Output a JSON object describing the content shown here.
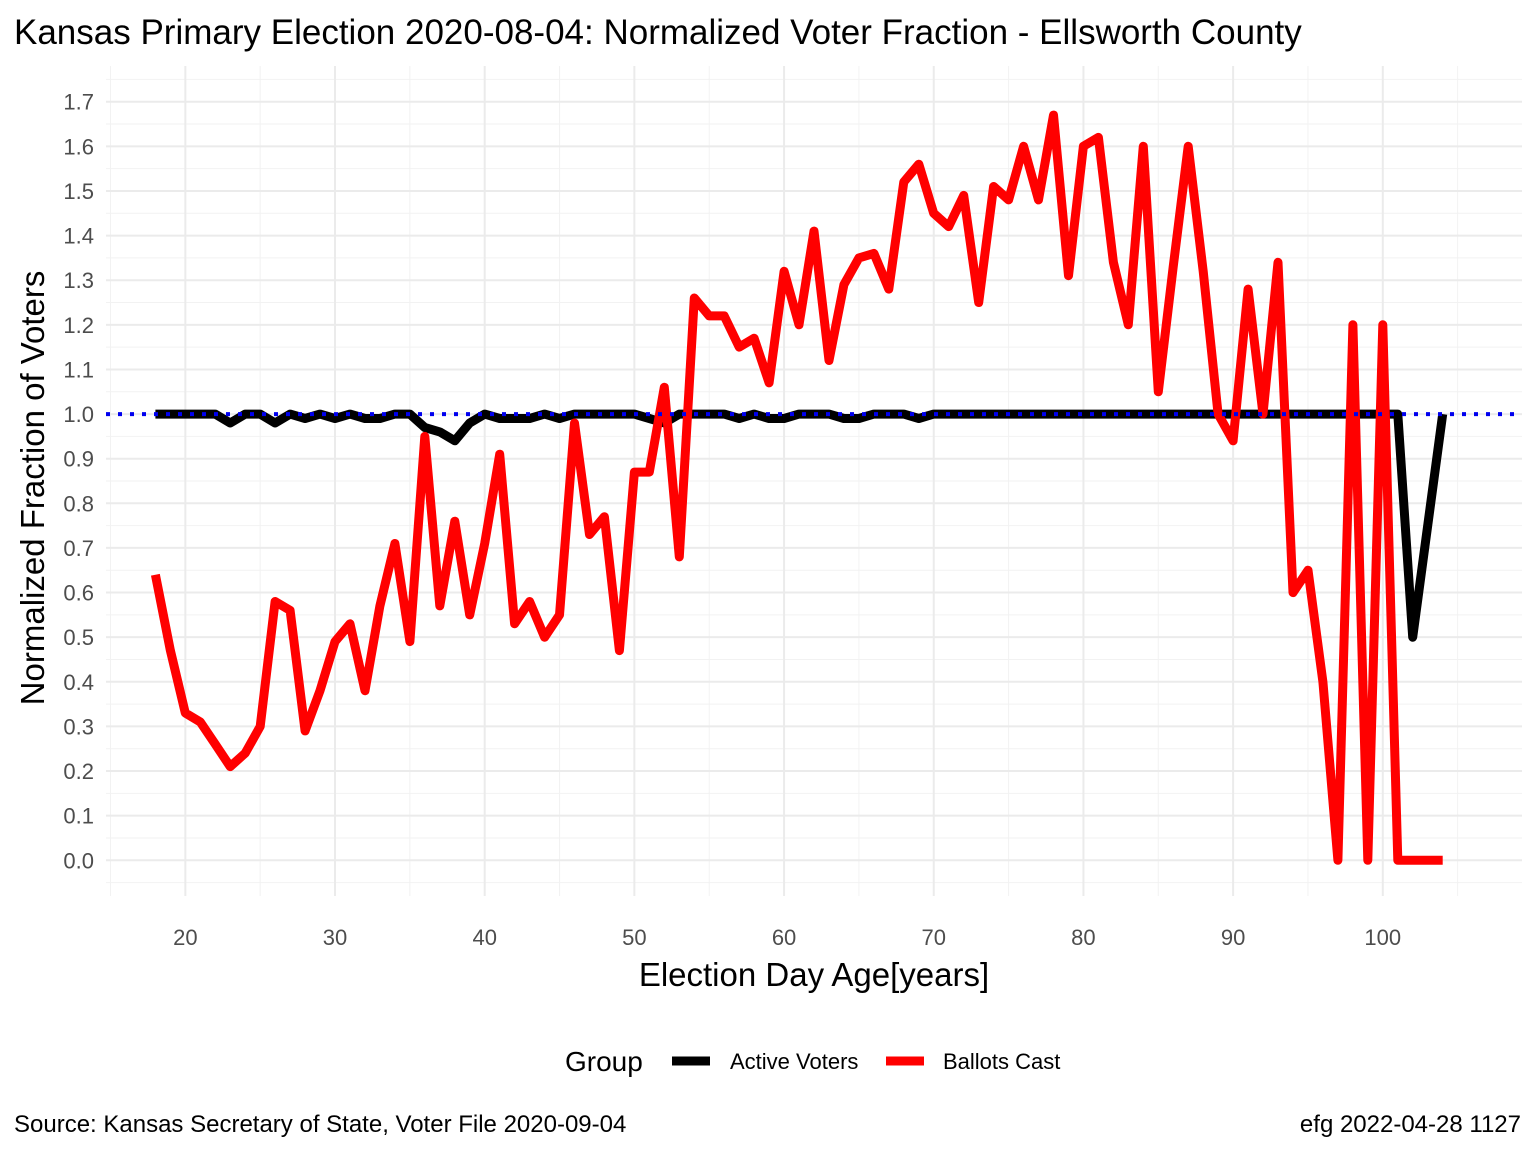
{
  "chart_data": {
    "type": "line",
    "title": "Kansas Primary Election 2020-08-04:  Normalized Voter Fraction - Ellsworth County",
    "xlabel": "Election Day Age[years]",
    "ylabel": "Normalized Fraction of Voters",
    "xlim": [
      14.7,
      109.3
    ],
    "ylim": [
      -0.08,
      1.78
    ],
    "x_ticks": [
      20,
      30,
      40,
      50,
      60,
      70,
      80,
      90,
      100
    ],
    "y_ticks": [
      0.0,
      0.1,
      0.2,
      0.3,
      0.4,
      0.5,
      0.6,
      0.7,
      0.8,
      0.9,
      1.0,
      1.1,
      1.2,
      1.3,
      1.4,
      1.5,
      1.6,
      1.7
    ],
    "y_tick_labels": [
      "0.0",
      "0.1",
      "0.2",
      "0.3",
      "0.4",
      "0.5",
      "0.6",
      "0.7",
      "0.8",
      "0.9",
      "1.0",
      "1.1",
      "1.2",
      "1.3",
      "1.4",
      "1.5",
      "1.6",
      "1.7"
    ],
    "grid": true,
    "reference_line": {
      "y": 1.0,
      "color": "#0000ee",
      "style": "dotted"
    },
    "legend": {
      "title": "Group",
      "position": "bottom"
    },
    "series": [
      {
        "name": "Active Voters",
        "color": "#000000",
        "x": [
          18,
          19,
          20,
          21,
          22,
          23,
          24,
          25,
          26,
          27,
          28,
          29,
          30,
          31,
          32,
          33,
          34,
          35,
          36,
          37,
          38,
          39,
          40,
          41,
          42,
          43,
          44,
          45,
          46,
          47,
          48,
          49,
          50,
          51,
          52,
          53,
          54,
          55,
          56,
          57,
          58,
          59,
          60,
          61,
          62,
          63,
          64,
          65,
          66,
          67,
          68,
          69,
          70,
          71,
          72,
          73,
          74,
          75,
          76,
          77,
          78,
          79,
          80,
          81,
          82,
          83,
          84,
          85,
          86,
          87,
          88,
          89,
          90,
          91,
          92,
          93,
          94,
          95,
          96,
          97,
          98,
          99,
          100,
          101,
          102,
          103,
          104
        ],
        "values": [
          1.0,
          1.0,
          1.0,
          1.0,
          1.0,
          0.98,
          1.0,
          1.0,
          0.98,
          1.0,
          0.99,
          1.0,
          0.99,
          1.0,
          0.99,
          0.99,
          1.0,
          1.0,
          0.97,
          0.96,
          0.94,
          0.98,
          1.0,
          0.99,
          0.99,
          0.99,
          1.0,
          0.99,
          1.0,
          1.0,
          1.0,
          1.0,
          1.0,
          0.99,
          0.98,
          1.0,
          1.0,
          1.0,
          1.0,
          0.99,
          1.0,
          0.99,
          0.99,
          1.0,
          1.0,
          1.0,
          0.99,
          0.99,
          1.0,
          1.0,
          1.0,
          0.99,
          1.0,
          1.0,
          1.0,
          1.0,
          1.0,
          1.0,
          1.0,
          1.0,
          1.0,
          1.0,
          1.0,
          1.0,
          1.0,
          1.0,
          1.0,
          1.0,
          1.0,
          1.0,
          1.0,
          1.0,
          1.0,
          1.0,
          1.0,
          1.0,
          1.0,
          1.0,
          1.0,
          1.0,
          1.0,
          1.0,
          1.0,
          1.0,
          0.5,
          0.75,
          1.0
        ]
      },
      {
        "name": "Ballots Cast",
        "color": "#ff0000",
        "x": [
          18,
          19,
          20,
          21,
          22,
          23,
          24,
          25,
          26,
          27,
          28,
          29,
          30,
          31,
          32,
          33,
          34,
          35,
          36,
          37,
          38,
          39,
          40,
          41,
          42,
          43,
          44,
          45,
          46,
          47,
          48,
          49,
          50,
          51,
          52,
          53,
          54,
          55,
          56,
          57,
          58,
          59,
          60,
          61,
          62,
          63,
          64,
          65,
          66,
          67,
          68,
          69,
          70,
          71,
          72,
          73,
          74,
          75,
          76,
          77,
          78,
          79,
          80,
          81,
          82,
          83,
          84,
          85,
          86,
          87,
          88,
          89,
          90,
          91,
          92,
          93,
          94,
          95,
          96,
          97,
          98,
          99,
          100,
          101,
          102,
          103,
          104
        ],
        "values": [
          0.64,
          0.47,
          0.33,
          0.31,
          0.26,
          0.21,
          0.24,
          0.3,
          0.58,
          0.56,
          0.29,
          0.38,
          0.49,
          0.53,
          0.38,
          0.57,
          0.71,
          0.49,
          0.95,
          0.57,
          0.76,
          0.55,
          0.71,
          0.91,
          0.53,
          0.58,
          0.5,
          0.55,
          0.98,
          0.73,
          0.77,
          0.47,
          0.87,
          0.87,
          1.06,
          0.68,
          1.26,
          1.22,
          1.22,
          1.15,
          1.17,
          1.07,
          1.32,
          1.2,
          1.41,
          1.12,
          1.29,
          1.35,
          1.36,
          1.28,
          1.52,
          1.56,
          1.45,
          1.42,
          1.49,
          1.25,
          1.51,
          1.48,
          1.6,
          1.48,
          1.67,
          1.31,
          1.6,
          1.62,
          1.34,
          1.2,
          1.6,
          1.05,
          1.33,
          1.6,
          1.32,
          1.0,
          0.94,
          1.28,
          1.0,
          1.34,
          0.6,
          0.65,
          0.4,
          0.0,
          1.2,
          0.0,
          1.2,
          0.0,
          0.0,
          0.0,
          0.0
        ]
      }
    ],
    "source_caption": "Source:  Kansas Secretary of State, Voter File  2020-09-04",
    "credit_caption": "efg 2022-04-28 1127"
  }
}
